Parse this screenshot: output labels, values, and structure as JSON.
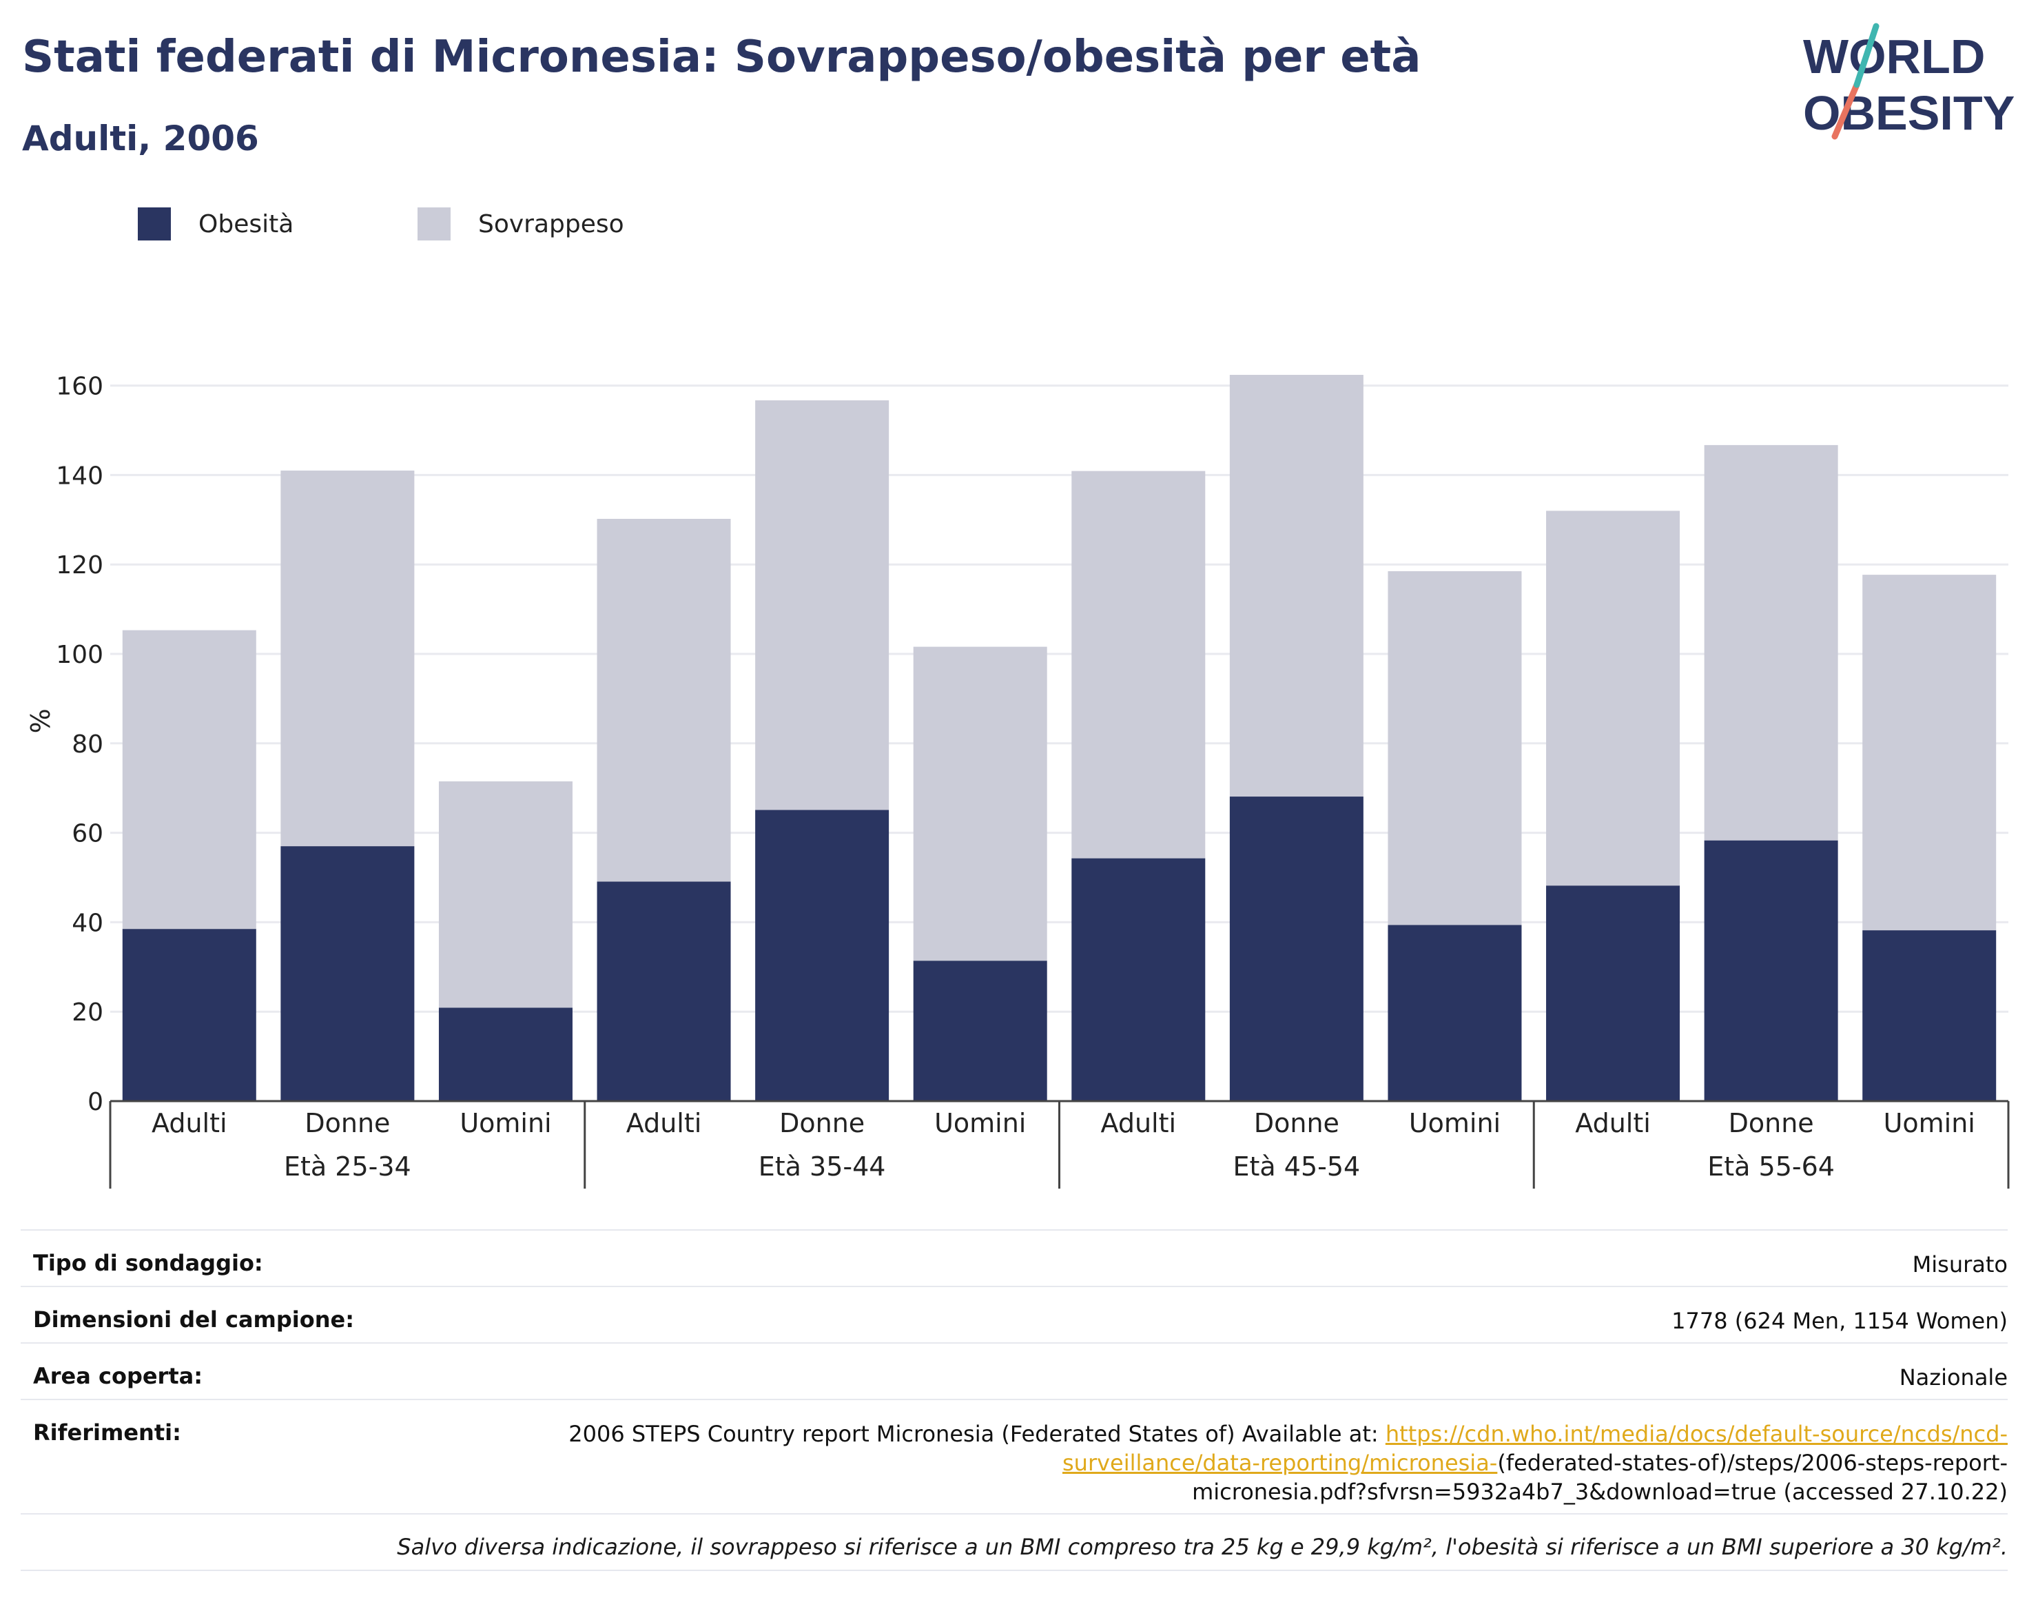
{
  "header": {
    "title": "Stati federati di Micronesia: Sovrappeso/obesità per età",
    "subtitle": "Adulti, 2006"
  },
  "logo": {
    "line1": "WORLD",
    "line2": "OBESITY"
  },
  "colors": {
    "obesity": "#2a3561",
    "overweight": "#cbccd8",
    "link": "#e0a91b",
    "title": "#2a3561"
  },
  "chart_data": {
    "type": "bar",
    "stacked": true,
    "ylabel": "%",
    "ylim": [
      0,
      170
    ],
    "yticks": [
      0,
      20,
      40,
      60,
      80,
      100,
      120,
      140,
      160
    ],
    "grid": true,
    "legend_position": "top-left",
    "groups": [
      "Età 25-34",
      "Età 35-44",
      "Età 45-54",
      "Età 55-64"
    ],
    "categories": [
      "Adulti",
      "Donne",
      "Uomini",
      "Adulti",
      "Donne",
      "Uomini",
      "Adulti",
      "Donne",
      "Uomini",
      "Adulti",
      "Donne",
      "Uomini"
    ],
    "series": [
      {
        "name": "Obesità",
        "color": "#2a3561",
        "values": [
          38.5,
          57.0,
          20.9,
          49.1,
          65.1,
          31.4,
          54.3,
          68.1,
          39.4,
          48.2,
          58.3,
          38.2
        ]
      },
      {
        "name": "Sovrappeso",
        "color": "#cbccd8",
        "values": [
          66.8,
          84.0,
          50.6,
          81.1,
          91.6,
          70.2,
          86.6,
          94.3,
          79.1,
          83.8,
          88.4,
          79.5
        ]
      }
    ]
  },
  "info": {
    "rows": [
      {
        "label": "Tipo di sondaggio:",
        "value": "Misurato"
      },
      {
        "label": "Dimensioni del campione:",
        "value": "1778 (624 Men, 1154 Women)"
      },
      {
        "label": "Area coperta:",
        "value": "Nazionale"
      }
    ],
    "references": {
      "label": "Riferimenti:",
      "line1_text": "2006 STEPS Country report Micronesia (Federated States of) Available at: ",
      "line1_link": "https://cdn.who.int/media/docs/default-source/ncds/ncd-",
      "line2_link": "surveillance/data-reporting/micronesia-",
      "line2_text": "(federated-states-of)/steps/2006-steps-report-",
      "line3_text": "micronesia.pdf?sfvrsn=5932a4b7_3&download=true (accessed 27.10.22)"
    },
    "note": "Salvo diversa indicazione, il sovrappeso si riferisce a un BMI compreso tra 25 kg e 29,9 kg/m², l'obesità si riferisce a un BMI superiore a 30 kg/m²."
  }
}
